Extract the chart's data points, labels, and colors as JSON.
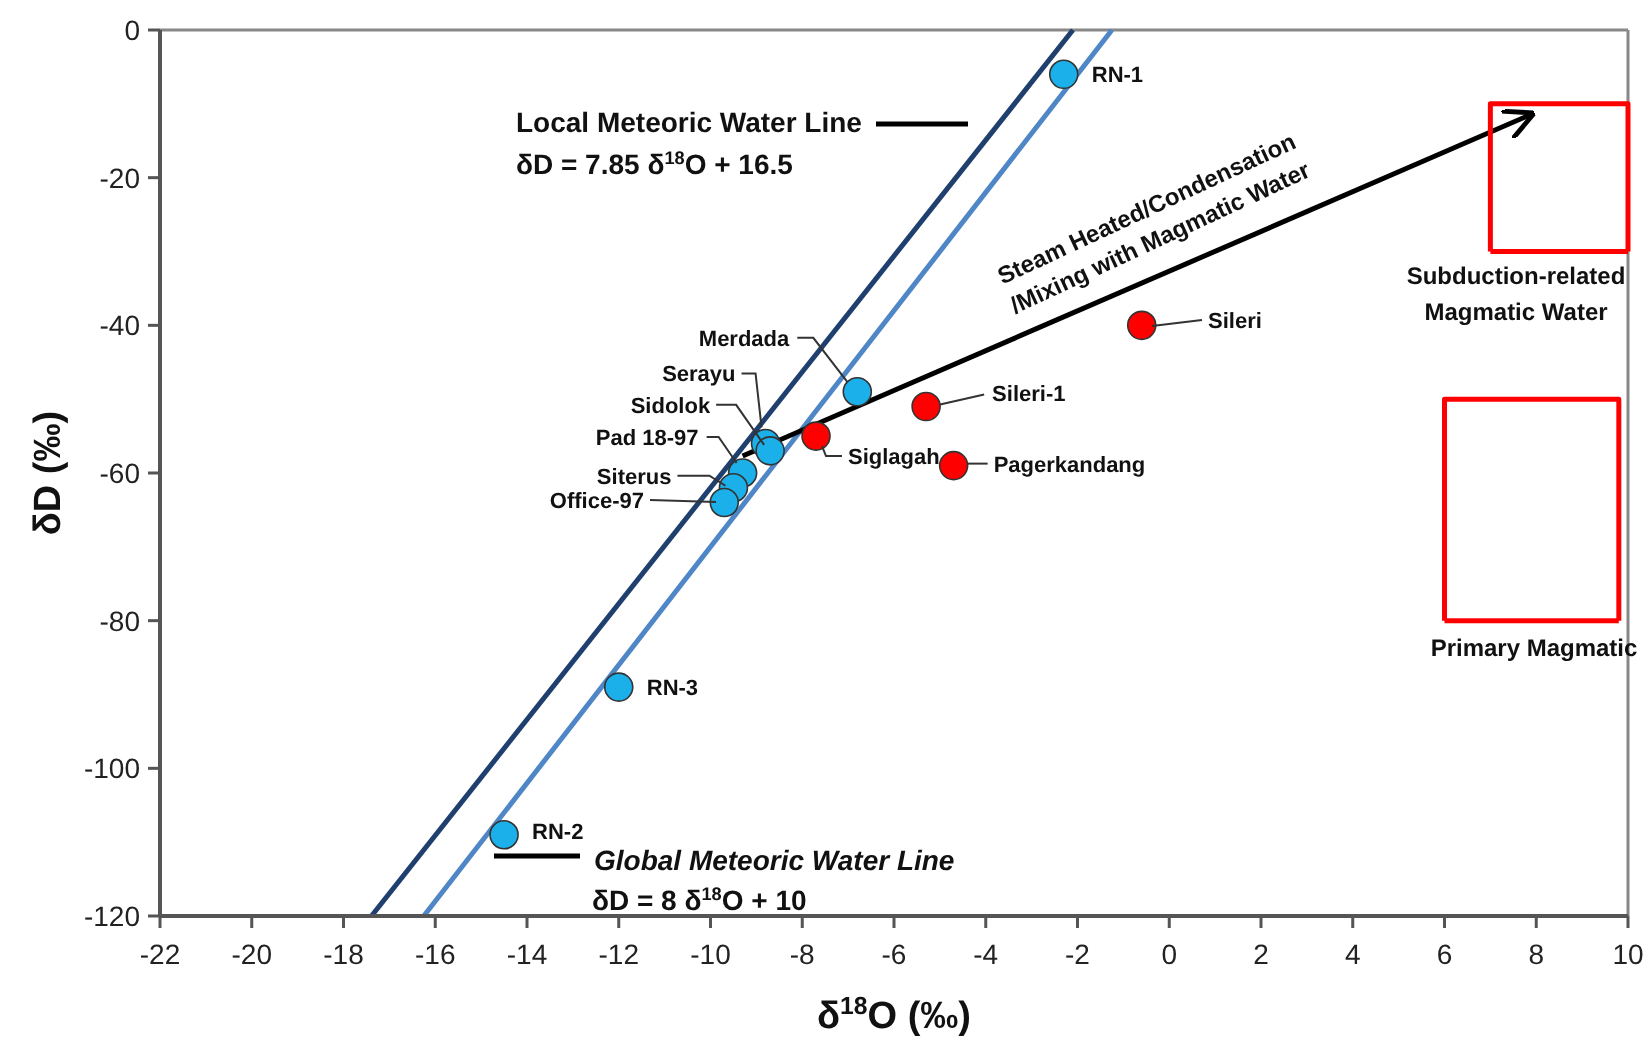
{
  "chart_data": {
    "type": "scatter",
    "xlabel": "δ$^{18}$O (‰)",
    "ylabel": "δD (‰)",
    "xlim": [
      -22,
      10
    ],
    "ylim": [
      -120,
      0
    ],
    "xticks": [
      -22,
      -20,
      -18,
      -16,
      -14,
      -12,
      -10,
      -8,
      -6,
      -4,
      -2,
      0,
      2,
      4,
      6,
      8,
      10
    ],
    "yticks": [
      -120,
      -100,
      -80,
      -60,
      -40,
      -20,
      0
    ],
    "grid": false,
    "line_style": "solid",
    "series": [
      {
        "type": "line",
        "marker": "none",
        "color": "#1f3f6e",
        "x": [
          -17.39,
          -2.1
        ],
        "values": [
          -120,
          0
        ]
      },
      {
        "type": "line",
        "marker": "none",
        "color": "#4f86c6",
        "x": [
          -16.25,
          -1.25
        ],
        "values": [
          -120,
          0
        ]
      },
      {
        "type": "line",
        "marker": "none",
        "color": "#000000",
        "x": [
          -9.3,
          7.9
        ],
        "values": [
          -57.7,
          -11.4
        ]
      },
      {
        "type": "line",
        "marker": "none",
        "color": "#ff0000",
        "x": [
          7,
          7,
          10,
          10
        ],
        "values": [
          -30,
          -10,
          -10,
          -30
        ]
      },
      {
        "type": "line",
        "marker": "none",
        "color": "#ff0000",
        "x": [
          7,
          10
        ],
        "values": [
          -30,
          -30
        ]
      },
      {
        "type": "line",
        "marker": "none",
        "color": "#ff0000",
        "x": [
          6,
          6,
          9.8,
          9.8
        ],
        "values": [
          -80,
          -50,
          -50,
          -80
        ]
      },
      {
        "type": "line",
        "marker": "none",
        "color": "#ff0000",
        "x": [
          6,
          9.8
        ],
        "values": [
          -80,
          -80
        ]
      },
      {
        "marker": "circle",
        "color": "#1cb0eb",
        "x": [
          -2.3,
          -12,
          -14.5,
          -6.8,
          -8.8,
          -8.7,
          -9.3,
          -9.5,
          -9.7
        ],
        "values": [
          -6,
          -89,
          -109,
          -49,
          -56,
          -57,
          -60,
          -62,
          -64
        ]
      },
      {
        "marker": "circle",
        "color": "#ff0000",
        "x": [
          -7.7,
          -5.3,
          -4.7,
          -0.6
        ],
        "values": [
          -55,
          -51,
          -59,
          -40
        ]
      }
    ],
    "annotations": [
      "Local Meteoric Water Line",
      "δD = 7.85 δ$^{18}$O + 16.5",
      "Global Meteoric Water Line",
      "δD = 8 δ$^{18}$O + 10",
      "Steam Heated/Condensation\n/Mixing with Magmatic Water",
      "Subduction-related\nMagmatic Water",
      "Primary Magmatic",
      {
        "text": "RN-1",
        "x": -2.3,
        "y": -6
      },
      {
        "text": "RN-3",
        "x": -12,
        "y": -89
      },
      {
        "text": "RN-2",
        "x": -14.5,
        "y": -109
      },
      {
        "text": "Merdada",
        "x": -6.8,
        "y": -49
      },
      {
        "text": "Serayu",
        "x": -8.8,
        "y": -56
      },
      {
        "text": "Sidolok",
        "x": -8.7,
        "y": -57
      },
      {
        "text": "Pad 18-97",
        "x": -9.3,
        "y": -60
      },
      {
        "text": "Siterus",
        "x": -9.5,
        "y": -62
      },
      "Office-97",
      {
        "text": "Siglagah",
        "x": -7.7,
        "y": -55
      },
      {
        "text": "Sileri-1",
        "x": -5.3,
        "y": -51
      },
      {
        "text": "Pagerkandang",
        "x": -4.7,
        "y": -59
      },
      "Sileri"
    ]
  }
}
